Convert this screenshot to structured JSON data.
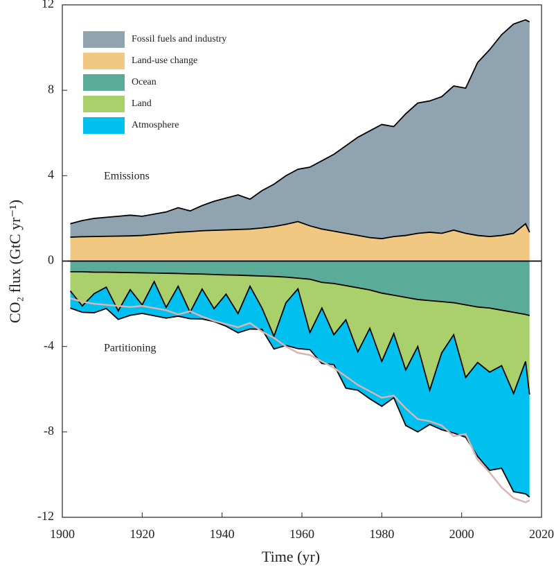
{
  "chart_data": {
    "type": "stacked-area",
    "x_label": "Time (yr)",
    "y_label": "CO₂ flux (GtC yr⁻¹)",
    "annotations": [
      "Emissions",
      "Partitioning"
    ],
    "xlim": [
      1900,
      2020
    ],
    "xticks": [
      1900,
      1920,
      1940,
      1960,
      1980,
      2000,
      2020
    ],
    "ylim": [
      -12,
      12
    ],
    "yticks": [
      -12,
      -8,
      -4,
      0,
      4,
      8,
      12
    ],
    "legend": "top-left",
    "x": [
      1902,
      1905,
      1908,
      1911,
      1914,
      1917,
      1920,
      1923,
      1926,
      1929,
      1932,
      1935,
      1938,
      1941,
      1944,
      1947,
      1950,
      1953,
      1956,
      1959,
      1962,
      1965,
      1968,
      1971,
      1974,
      1977,
      1980,
      1983,
      1986,
      1989,
      1992,
      1995,
      1998,
      2001,
      2004,
      2007,
      2010,
      2013,
      2016,
      2017
    ],
    "series": [
      {
        "name": "Fossil fuels and industry",
        "color": "#8fa3b0",
        "stack": "up",
        "values": [
          0.63,
          0.76,
          0.85,
          0.89,
          0.93,
          0.97,
          0.9,
          0.95,
          1.0,
          1.15,
          0.97,
          1.18,
          1.36,
          1.49,
          1.62,
          1.4,
          1.75,
          1.98,
          2.28,
          2.45,
          2.75,
          3.2,
          3.6,
          4.1,
          4.6,
          5.0,
          5.35,
          5.15,
          5.7,
          6.1,
          6.15,
          6.4,
          6.75,
          6.8,
          8.1,
          8.75,
          9.4,
          9.8,
          9.55,
          9.85
        ]
      },
      {
        "name": "Land-use change",
        "color": "#f0c882",
        "stack": "up",
        "values": [
          1.12,
          1.14,
          1.15,
          1.16,
          1.17,
          1.18,
          1.2,
          1.25,
          1.3,
          1.35,
          1.38,
          1.42,
          1.44,
          1.46,
          1.48,
          1.5,
          1.55,
          1.62,
          1.72,
          1.85,
          1.65,
          1.5,
          1.4,
          1.3,
          1.2,
          1.1,
          1.05,
          1.15,
          1.2,
          1.3,
          1.35,
          1.3,
          1.45,
          1.3,
          1.2,
          1.15,
          1.2,
          1.3,
          1.75,
          1.35
        ]
      },
      {
        "name": "Ocean",
        "color": "#5aab98",
        "stack": "down",
        "values": [
          -0.5,
          -0.5,
          -0.52,
          -0.52,
          -0.53,
          -0.54,
          -0.55,
          -0.56,
          -0.57,
          -0.58,
          -0.6,
          -0.61,
          -0.63,
          -0.65,
          -0.66,
          -0.68,
          -0.7,
          -0.72,
          -0.75,
          -0.8,
          -0.85,
          -1.0,
          -1.05,
          -1.15,
          -1.25,
          -1.35,
          -1.5,
          -1.6,
          -1.7,
          -1.8,
          -1.85,
          -1.9,
          -1.95,
          -2.05,
          -2.15,
          -2.2,
          -2.3,
          -2.4,
          -2.5,
          -2.55
        ]
      },
      {
        "name": "Land",
        "color": "#a9d06a",
        "stack": "down",
        "values": [
          -0.9,
          -1.6,
          -1.0,
          -0.7,
          -1.8,
          -0.8,
          -1.5,
          -0.4,
          -1.6,
          -0.6,
          -1.8,
          -0.7,
          -1.6,
          -0.9,
          -1.8,
          -0.5,
          -1.5,
          -2.8,
          -1.2,
          -0.5,
          -2.5,
          -1.2,
          -2.4,
          -1.6,
          -3.0,
          -1.8,
          -3.2,
          -1.8,
          -3.4,
          -2.2,
          -4.2,
          -2.4,
          -1.5,
          -3.4,
          -2.6,
          -3.0,
          -2.6,
          -3.8,
          -2.2,
          -3.7
        ]
      },
      {
        "name": "Atmosphere",
        "color": "#00c0f0",
        "stack": "down",
        "values": [
          -0.8,
          -0.3,
          -0.9,
          -1.0,
          -0.4,
          -1.2,
          -0.4,
          -1.6,
          -0.5,
          -1.4,
          -0.3,
          -1.4,
          -0.6,
          -1.5,
          -0.9,
          -2.0,
          -1.0,
          -0.6,
          -2.0,
          -2.8,
          -0.8,
          -2.6,
          -1.4,
          -3.2,
          -1.8,
          -3.3,
          -2.1,
          -3.0,
          -2.6,
          -4.0,
          -1.6,
          -3.6,
          -4.6,
          -2.8,
          -4.4,
          -4.6,
          -4.8,
          -4.6,
          -6.2,
          -4.8
        ]
      }
    ],
    "lines": [
      {
        "color": "#d8b4b2",
        "values": [
          -1.75,
          -1.9,
          -2.0,
          -2.05,
          -2.1,
          -2.15,
          -2.1,
          -2.2,
          -2.3,
          -2.5,
          -2.35,
          -2.6,
          -2.8,
          -2.95,
          -3.1,
          -2.9,
          -3.3,
          -3.6,
          -4.0,
          -4.3,
          -4.4,
          -4.7,
          -5.0,
          -5.4,
          -5.8,
          -6.1,
          -6.4,
          -6.3,
          -6.9,
          -7.4,
          -7.5,
          -7.7,
          -8.2,
          -8.1,
          -9.3,
          -9.9,
          -10.6,
          -11.1,
          -11.3,
          -11.2
        ]
      }
    ]
  }
}
